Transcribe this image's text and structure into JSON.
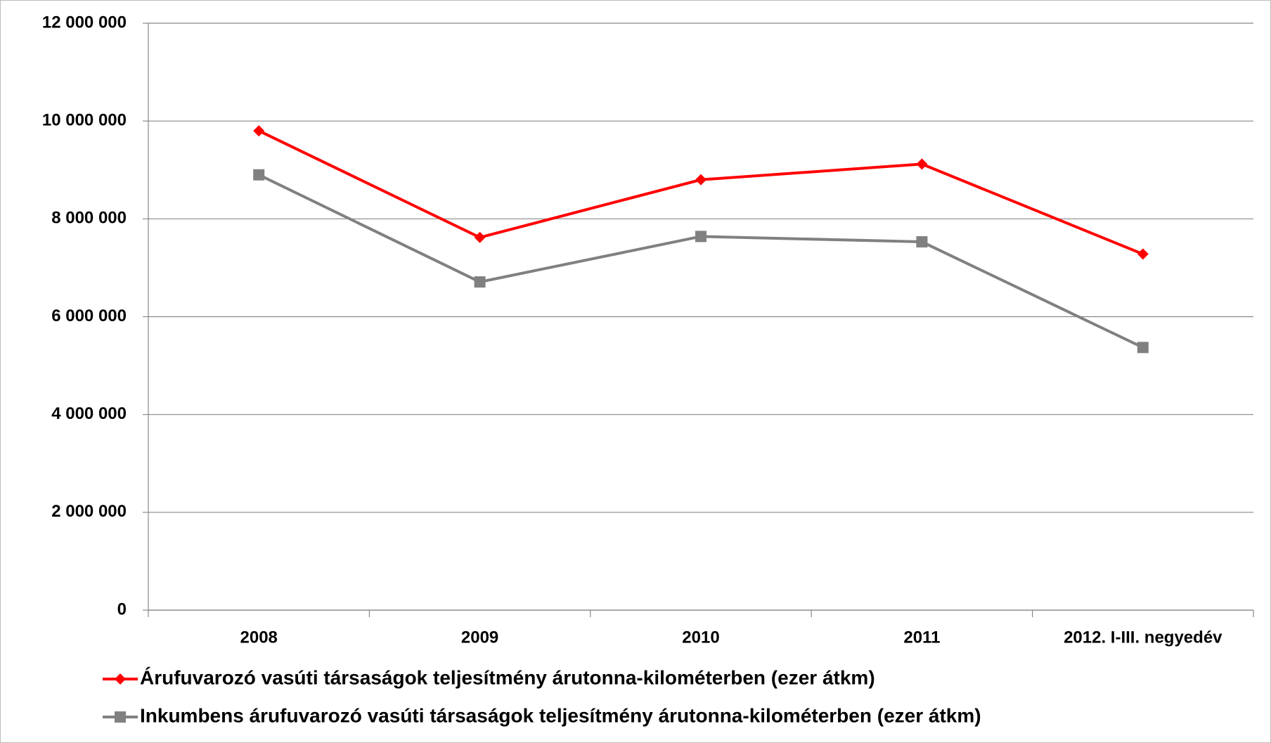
{
  "chart_data": {
    "type": "line",
    "categories": [
      "2008",
      "2009",
      "2010",
      "2011",
      "2012. I-III. negyedév"
    ],
    "series": [
      {
        "name": "Árufuvarozó vasúti társaságok teljesítmény árutonna-kilométerben (ezer átkm)",
        "color": "#ff0000",
        "marker": "diamond",
        "values": [
          9800000,
          7620000,
          8800000,
          9120000,
          7280000
        ]
      },
      {
        "name": "Inkumbens árufuvarozó vasúti társaságok teljesítmény árutonna-kilométerben (ezer átkm)",
        "color": "#808080",
        "marker": "square",
        "values": [
          8900000,
          6710000,
          7640000,
          7530000,
          5370000
        ]
      }
    ],
    "ylim": [
      0,
      12000000
    ],
    "yticks": [
      0,
      {
        "value": 2000000,
        "label": "2 000 000"
      },
      {
        "value": 4000000,
        "label": "4 000 000"
      },
      {
        "value": 6000000,
        "label": "6 000 000"
      },
      {
        "value": 8000000,
        "label": "8 000 000"
      },
      {
        "value": 10000000,
        "label": "10 000 000"
      },
      {
        "value": 12000000,
        "label": "12 000 000"
      }
    ],
    "grid": true,
    "legend": "bottom"
  }
}
